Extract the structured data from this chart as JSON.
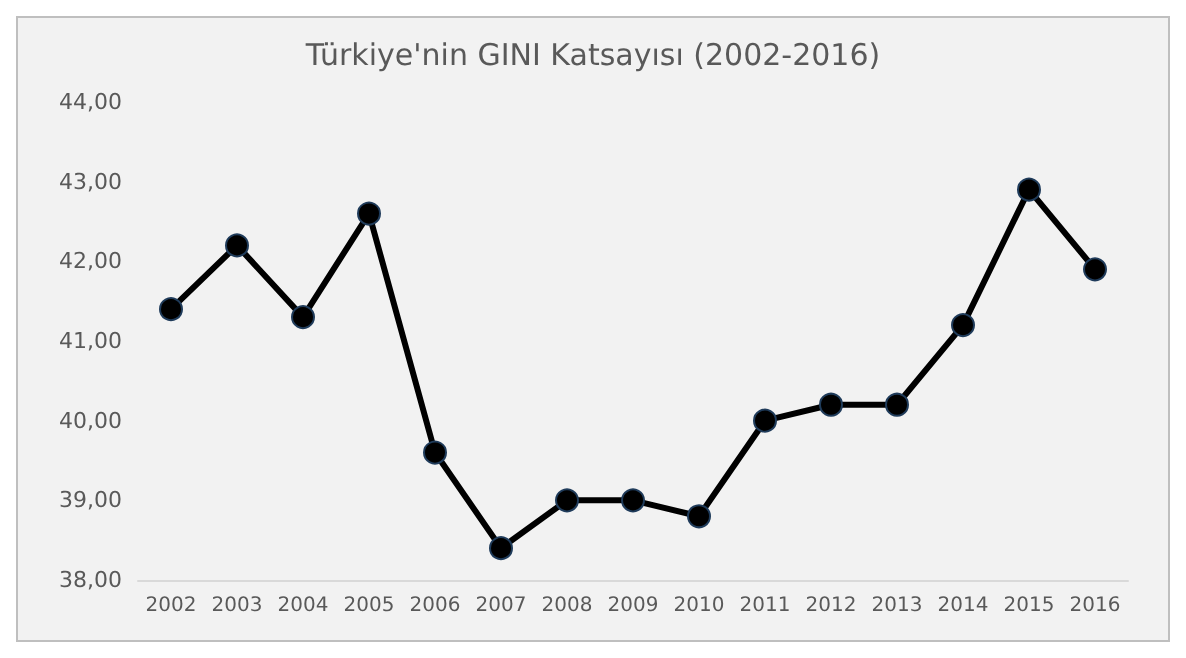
{
  "chart_data": {
    "type": "line",
    "title": "Türkiye'nin GINI Katsayısı (2002-2016)",
    "categories": [
      "2002",
      "2003",
      "2004",
      "2005",
      "2006",
      "2007",
      "2008",
      "2009",
      "2010",
      "2011",
      "2012",
      "2013",
      "2014",
      "2015",
      "2016"
    ],
    "series": [
      {
        "color": "#000000",
        "values": [
          41.4,
          42.2,
          41.3,
          42.6,
          39.6,
          38.4,
          39.0,
          39.0,
          38.8,
          40.0,
          40.2,
          40.2,
          41.2,
          42.9,
          41.9
        ]
      }
    ],
    "ylim": [
      38,
      44
    ],
    "yticks": [
      {
        "value": 38,
        "label": "38,00"
      },
      {
        "value": 39,
        "label": "39,00"
      },
      {
        "value": 40,
        "label": "40,00"
      },
      {
        "value": 41,
        "label": "41,00"
      },
      {
        "value": 42,
        "label": "42,00"
      },
      {
        "value": 43,
        "label": "43,00"
      },
      {
        "value": 44,
        "label": "44,00"
      }
    ],
    "grid": false,
    "marker": "circle",
    "line_style": "solid"
  }
}
